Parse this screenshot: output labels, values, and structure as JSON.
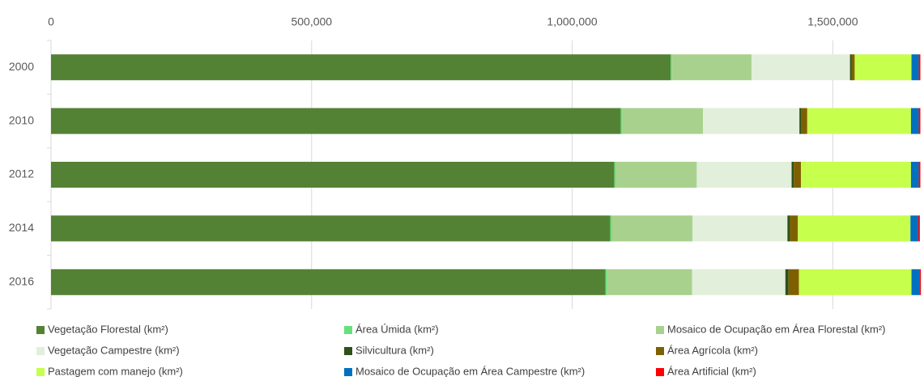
{
  "chart_data": {
    "type": "stacked-barh",
    "categories": [
      "2000",
      "2010",
      "2012",
      "2014",
      "2016"
    ],
    "series": [
      {
        "name": "Vegetação Florestal (km²)",
        "color": "#548235",
        "values": [
          1189000,
          1093000,
          1081000,
          1073000,
          1064000
        ]
      },
      {
        "name": "Área Úmida (km²)",
        "color": "#66e07a",
        "values": [
          3000,
          3000,
          3000,
          3000,
          3000
        ]
      },
      {
        "name": "Mosaico de Ocupação em Área Florestal (km²)",
        "color": "#a9d18e",
        "values": [
          152000,
          155000,
          155000,
          155000,
          163000
        ]
      },
      {
        "name": "Vegetação Campestre (km²)",
        "color": "#e2efda",
        "values": [
          189000,
          185000,
          182000,
          182000,
          179000
        ]
      },
      {
        "name": "Silvicultura (km²)",
        "color": "#2d5219",
        "values": [
          3000,
          4000,
          4000,
          5000,
          6000
        ]
      },
      {
        "name": "Área Agrícola (km²)",
        "color": "#7f6000",
        "values": [
          6000,
          11000,
          14000,
          15000,
          20000
        ]
      },
      {
        "name": "Pastagem com manejo (km²)",
        "color": "#c6ff4c",
        "values": [
          109000,
          199000,
          211000,
          216000,
          216000
        ]
      },
      {
        "name": "Mosaico de Ocupação em Área Campestre (km²)",
        "color": "#0070c0",
        "values": [
          14000,
          15000,
          15000,
          15000,
          15000
        ]
      },
      {
        "name": "Área Artificial (km²)",
        "color": "#ff0000",
        "values": [
          3000,
          3000,
          3000,
          3000,
          3000
        ]
      }
    ],
    "xlim": [
      0,
      1675000
    ],
    "xticks": [
      0,
      {
        "value": 500000,
        "label": "500,000"
      },
      {
        "value": 1000000,
        "label": "1,000,000"
      },
      {
        "value": 1500000,
        "label": "1,500,000"
      }
    ],
    "grid": true,
    "legend": "bottom"
  }
}
